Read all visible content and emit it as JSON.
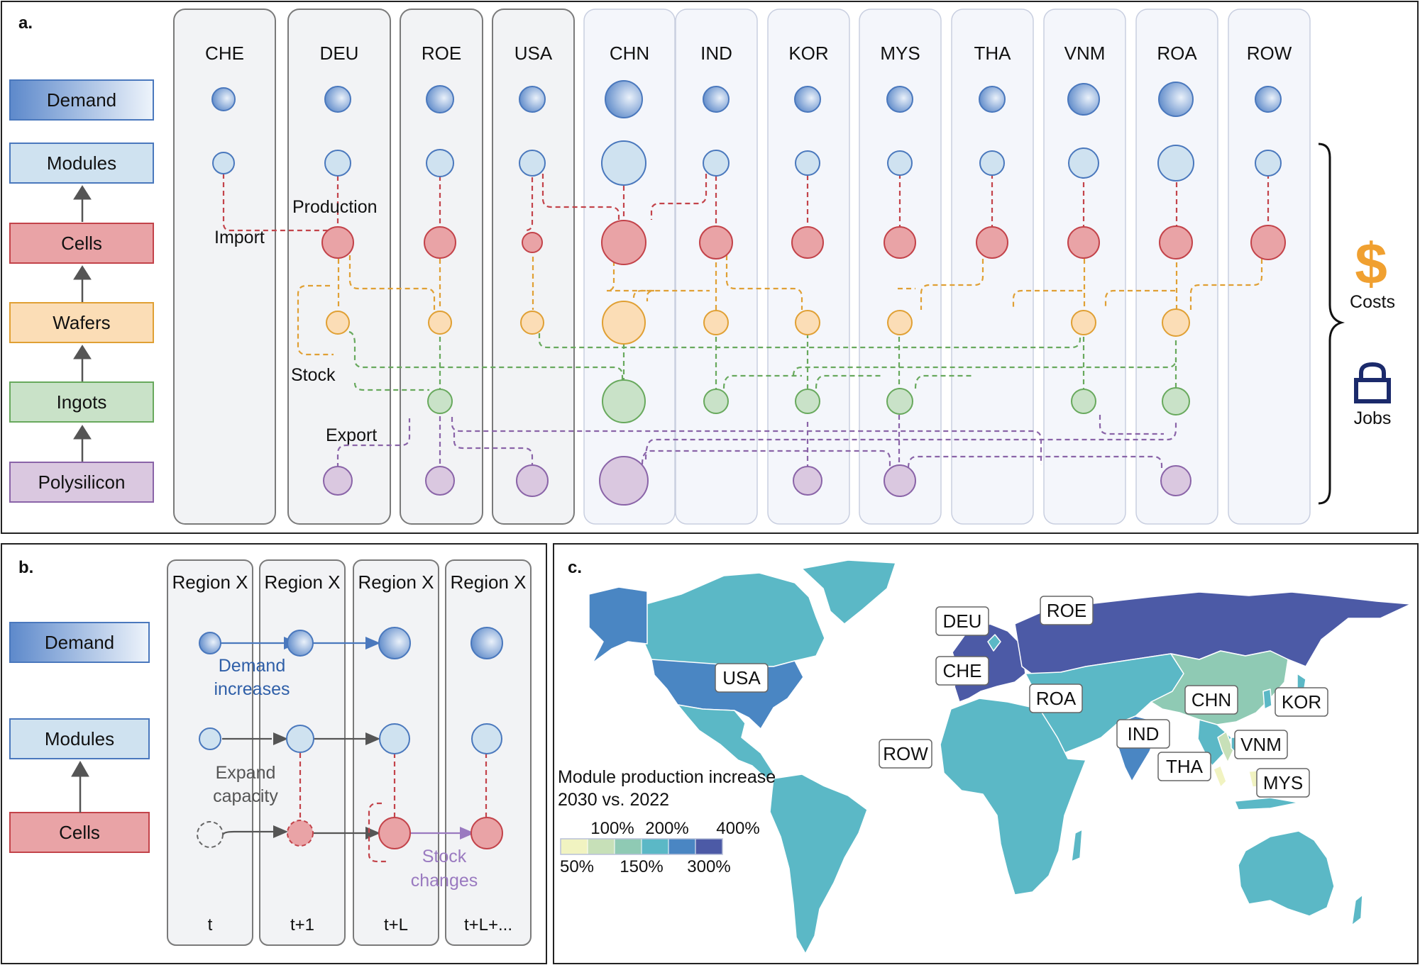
{
  "panel_a": {
    "label": "a.",
    "legend": [
      "Demand",
      "Modules",
      "Cells",
      "Wafers",
      "Ingots",
      "Polysilicon"
    ],
    "regions": [
      "CHE",
      "DEU",
      "ROE",
      "USA",
      "CHN",
      "IND",
      "KOR",
      "MYS",
      "THA",
      "VNM",
      "ROA",
      "ROW"
    ],
    "annotations": {
      "production": "Production",
      "import": "Import",
      "stock": "Stock",
      "export": "Export"
    },
    "outputs": {
      "costs_symbol": "$",
      "costs": "Costs",
      "jobs": "Jobs",
      "costs_icon": "dollar-icon",
      "jobs_icon": "lock-icon"
    }
  },
  "panel_b": {
    "label": "b.",
    "legend": [
      "Demand",
      "Modules",
      "Cells"
    ],
    "column_title": "Region X",
    "times": [
      "t",
      "t+1",
      "t+L",
      "t+L+..."
    ],
    "annotations": {
      "demand_1": "Demand",
      "demand_2": "increases",
      "expand_1": "Expand",
      "expand_2": "capacity",
      "stock_1": "Stock",
      "stock_2": "changes"
    }
  },
  "panel_c": {
    "label": "c.",
    "map_labels": [
      "DEU",
      "ROE",
      "USA",
      "CHE",
      "ROA",
      "CHN",
      "KOR",
      "IND",
      "VNM",
      "ROW",
      "THA",
      "MYS"
    ],
    "legend_title_1": "Module production increase",
    "legend_title_2": "2030 vs. 2022",
    "legend_top": [
      "100%",
      "200%",
      "400%"
    ],
    "legend_bottom": [
      "50%",
      "150%",
      "300%"
    ],
    "scale_colors": [
      "#f1f3c1",
      "#c7e0b8",
      "#8fcab4",
      "#5bb8c6",
      "#4a86c3",
      "#4c5aa6"
    ]
  },
  "colors": {
    "demand_fill": "#7ea3d4",
    "demand_stroke": "#4a78bd",
    "modules_fill": "#cfe2f0",
    "modules_stroke": "#4a78bd",
    "cells_fill": "#e9a3a6",
    "cells_stroke": "#c3434a",
    "wafers_fill": "#fbddb6",
    "wafers_stroke": "#e0a034",
    "ingots_fill": "#c9e2c8",
    "ingots_stroke": "#68a95d",
    "poly_fill": "#dac8e0",
    "poly_stroke": "#8a64a8",
    "costs_orange": "#f0a030",
    "jobs_navy": "#1b2a6b"
  }
}
